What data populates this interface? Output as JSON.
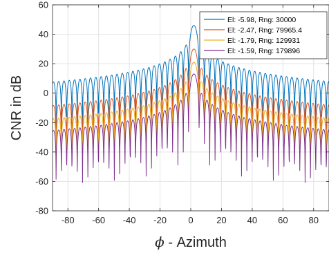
{
  "chart_data": {
    "type": "line",
    "xlabel_symbol": "ϕ",
    "xlabel_text": " - Azimuth",
    "ylabel": "CNR in dB",
    "xlim": [
      -90,
      90
    ],
    "ylim": [
      -80,
      60
    ],
    "xticks": [
      -80,
      -60,
      -40,
      -20,
      0,
      20,
      40,
      60,
      80
    ],
    "yticks": [
      -80,
      -60,
      -40,
      -20,
      0,
      20,
      40,
      60
    ],
    "grid": true,
    "legend_position": "top-right",
    "series": [
      {
        "name": "El: -5.98, Rng:   30000",
        "color": "#0072BD",
        "peak": 46,
        "floor": -20,
        "edge": -20
      },
      {
        "name": "El: -2.47, Rng: 79965.4",
        "color": "#D95319",
        "peak": 30,
        "floor": -35,
        "edge": -37
      },
      {
        "name": "El: -1.79, Rng:  129931",
        "color": "#EDB120",
        "peak": 21,
        "floor": -42,
        "edge": -48
      },
      {
        "name": "El: -1.59, Rng:  179896",
        "color": "#7E2F8E",
        "peak": 13,
        "floor": -47,
        "edge": -55
      }
    ]
  }
}
